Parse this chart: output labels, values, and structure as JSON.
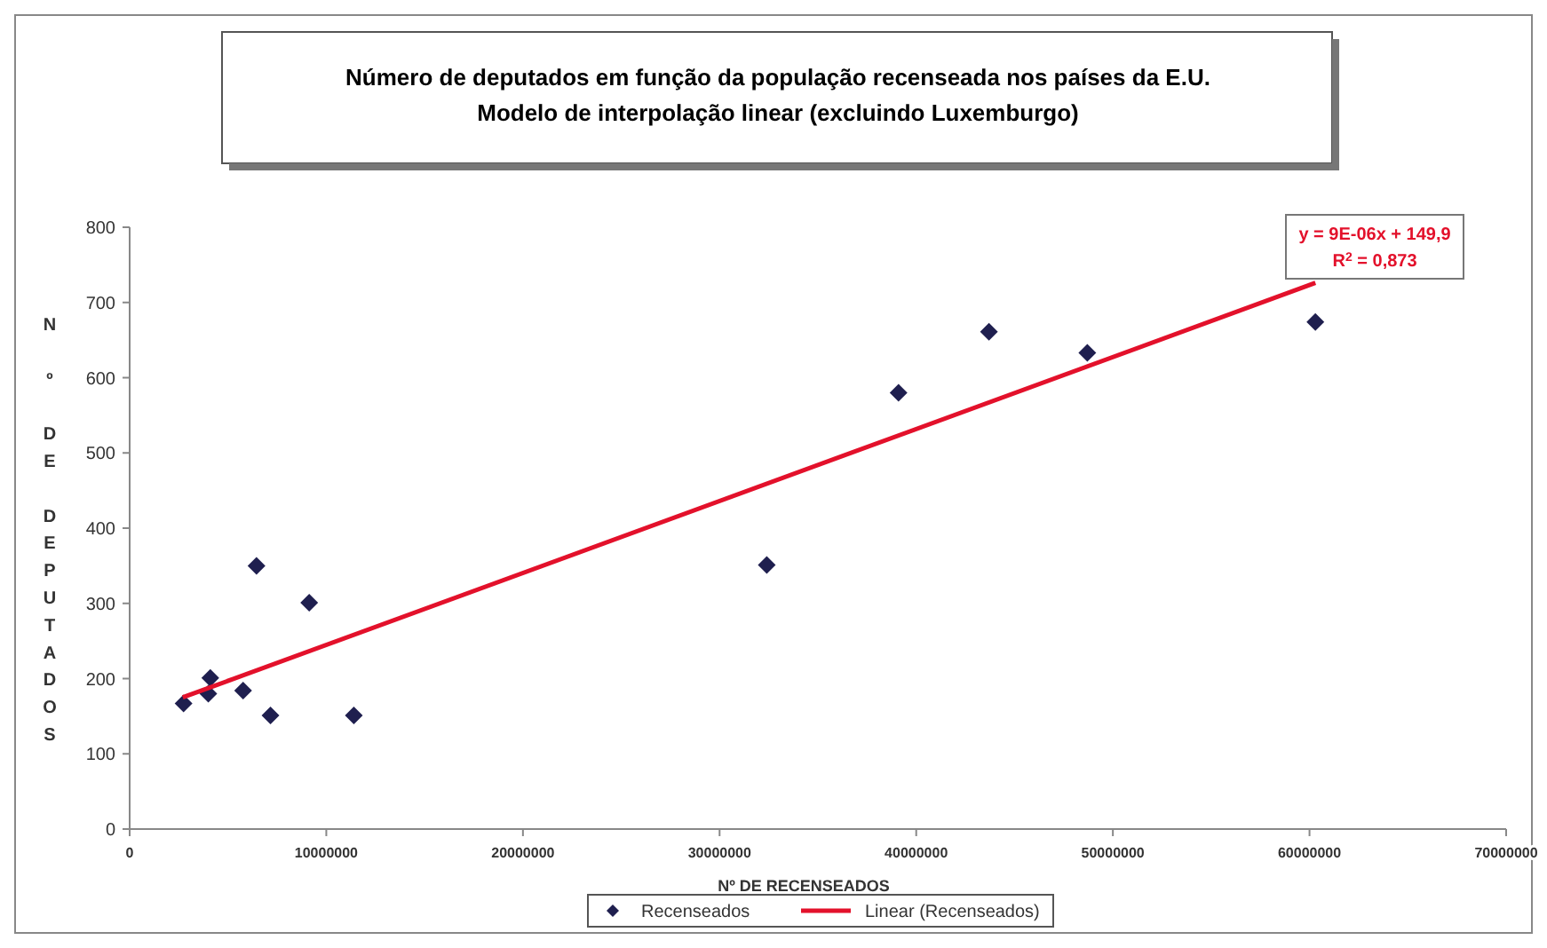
{
  "chart_data": {
    "type": "scatter",
    "title": "Número de deputados em função da população recenseada nos países da E.U.",
    "subtitle": "Modelo de interpolação linear (excluindo Luxemburgo)",
    "xlabel": "Nº DE RECENSEADOS",
    "ylabel": "N º DE DEPUTADOS",
    "xlim": [
      0,
      70000000
    ],
    "xticks": [
      0,
      10000000,
      20000000,
      30000000,
      40000000,
      50000000,
      60000000,
      70000000
    ],
    "ylim": [
      0,
      800
    ],
    "yticks": [
      0,
      100,
      200,
      300,
      400,
      500,
      600,
      700,
      800
    ],
    "marker": "diamond",
    "legend": "bottom",
    "annotations": [
      "y = 9E-06x + 149,9\nR$^{2}$ = 0,873"
    ],
    "series": [
      {
        "name": "Recenseados",
        "color": "#1f1f4f",
        "x": [
          2740000,
          4000000,
          4100000,
          5770000,
          6450000,
          7160000,
          9130000,
          11400000,
          32400000,
          39100000,
          43700000,
          48700000,
          60300000
        ],
        "values": [
          167,
          180,
          201,
          184,
          350,
          151,
          301,
          151,
          351,
          580,
          661,
          633,
          674
        ]
      },
      {
        "name": "Linear (Recenseados)",
        "type": "line",
        "color": "#e3112b",
        "marker": "none",
        "x": [
          2700000,
          60300000
        ],
        "values": [
          175,
          726
        ]
      }
    ]
  }
}
